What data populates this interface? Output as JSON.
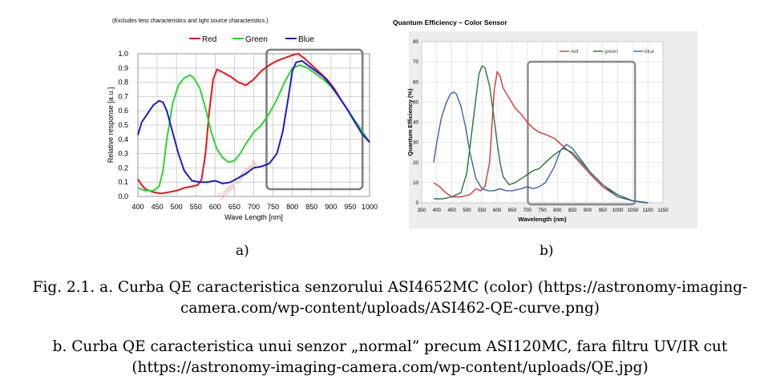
{
  "chart_data": [
    {
      "type": "line",
      "note_top": "(Excludes lens characteristics and light source characteristics.)",
      "xlabel": "Wave Length [nm]",
      "ylabel": "Relative response [a.u.]",
      "xlim": [
        400,
        1000
      ],
      "ylim": [
        0,
        1.0
      ],
      "xticks": [
        400,
        450,
        500,
        550,
        600,
        650,
        700,
        750,
        800,
        850,
        900,
        950,
        1000
      ],
      "yticks": [
        0.0,
        0.1,
        0.2,
        0.3,
        0.4,
        0.5,
        0.6,
        0.7,
        0.8,
        0.9,
        1.0
      ],
      "ytick_labels": [
        "0.0",
        "0.1",
        "0.2",
        "0.3",
        "0.4",
        "0.5",
        "0.6",
        "0.7",
        "0.8",
        "0.9",
        "1.0"
      ],
      "grid": true,
      "legend_position": "top",
      "watermark": "Sony Limited",
      "highlight_box_x": [
        700,
        990
      ],
      "series": [
        {
          "name": "Red",
          "color": "#e8141c",
          "x": [
            400,
            410,
            420,
            440,
            460,
            480,
            500,
            520,
            540,
            555,
            565,
            575,
            585,
            595,
            605,
            620,
            640,
            660,
            680,
            700,
            720,
            740,
            760,
            780,
            800,
            815,
            830,
            850,
            870,
            890,
            910,
            930,
            950,
            970,
            990,
            1000
          ],
          "y": [
            0.12,
            0.08,
            0.05,
            0.03,
            0.02,
            0.03,
            0.04,
            0.06,
            0.07,
            0.08,
            0.12,
            0.3,
            0.6,
            0.82,
            0.89,
            0.87,
            0.84,
            0.8,
            0.78,
            0.82,
            0.88,
            0.92,
            0.95,
            0.97,
            0.99,
            1.0,
            0.97,
            0.92,
            0.87,
            0.82,
            0.75,
            0.66,
            0.58,
            0.5,
            0.42,
            0.38
          ]
        },
        {
          "name": "Green",
          "color": "#2bd62b",
          "x": [
            400,
            420,
            440,
            455,
            465,
            475,
            490,
            505,
            520,
            535,
            545,
            560,
            575,
            590,
            605,
            620,
            635,
            650,
            665,
            680,
            700,
            720,
            740,
            760,
            780,
            800,
            820,
            840,
            860,
            880,
            900,
            920,
            940,
            960,
            980,
            1000
          ],
          "y": [
            0.06,
            0.04,
            0.04,
            0.07,
            0.18,
            0.4,
            0.65,
            0.78,
            0.83,
            0.85,
            0.83,
            0.76,
            0.62,
            0.45,
            0.33,
            0.27,
            0.24,
            0.25,
            0.3,
            0.37,
            0.45,
            0.5,
            0.58,
            0.68,
            0.8,
            0.9,
            0.92,
            0.9,
            0.86,
            0.82,
            0.77,
            0.7,
            0.62,
            0.54,
            0.46,
            0.38
          ]
        },
        {
          "name": "Blue",
          "color": "#1c1ccc",
          "x": [
            400,
            410,
            425,
            440,
            455,
            465,
            475,
            490,
            505,
            520,
            540,
            560,
            580,
            600,
            620,
            640,
            660,
            680,
            700,
            720,
            740,
            760,
            775,
            790,
            800,
            810,
            825,
            840,
            860,
            880,
            900,
            920,
            940,
            960,
            980,
            1000
          ],
          "y": [
            0.43,
            0.52,
            0.58,
            0.64,
            0.67,
            0.66,
            0.6,
            0.45,
            0.3,
            0.18,
            0.11,
            0.1,
            0.1,
            0.11,
            0.09,
            0.1,
            0.13,
            0.16,
            0.2,
            0.21,
            0.23,
            0.3,
            0.45,
            0.7,
            0.88,
            0.94,
            0.95,
            0.92,
            0.88,
            0.84,
            0.78,
            0.7,
            0.62,
            0.53,
            0.44,
            0.38
          ]
        }
      ]
    },
    {
      "type": "line",
      "title": "Quantum Efficiency – Color Sensor",
      "xlabel": "Wavelength (nm)",
      "ylabel": "Quantum Efficiency (%)",
      "xlim": [
        350,
        1150
      ],
      "ylim": [
        0,
        80
      ],
      "xticks": [
        350,
        400,
        450,
        500,
        550,
        600,
        650,
        700,
        750,
        800,
        850,
        900,
        950,
        1000,
        1050,
        1100,
        1150
      ],
      "yticks": [
        0,
        10,
        20,
        30,
        40,
        50,
        60,
        70,
        80
      ],
      "grid": true,
      "legend_position": "top-right",
      "highlight_box_x": [
        710,
        1100
      ],
      "series": [
        {
          "name": "red",
          "color": "#d2373c",
          "x": [
            390,
            410,
            430,
            450,
            480,
            510,
            530,
            545,
            560,
            575,
            590,
            600,
            610,
            620,
            640,
            660,
            680,
            700,
            720,
            740,
            760,
            790,
            820,
            850,
            880,
            910,
            950,
            1000,
            1050,
            1100
          ],
          "y": [
            10,
            8,
            5,
            3,
            3,
            4,
            7,
            6,
            8,
            20,
            55,
            65,
            63,
            57,
            52,
            47,
            44,
            40,
            37,
            35,
            34,
            32,
            28,
            24,
            19,
            14,
            8,
            3,
            1,
            0
          ]
        },
        {
          "name": "green",
          "color": "#227a37",
          "x": [
            390,
            420,
            450,
            480,
            500,
            520,
            540,
            550,
            560,
            575,
            590,
            600,
            610,
            620,
            640,
            660,
            680,
            700,
            720,
            740,
            760,
            790,
            820,
            850,
            880,
            910,
            950,
            1000,
            1050,
            1100
          ],
          "y": [
            2,
            2,
            3,
            5,
            15,
            40,
            64,
            68,
            67,
            58,
            42,
            30,
            20,
            13,
            9,
            10,
            12,
            14,
            16,
            17,
            20,
            24,
            27,
            25,
            20,
            15,
            9,
            4,
            1,
            0
          ]
        },
        {
          "name": "blue",
          "color": "#3a62a8",
          "x": [
            390,
            400,
            415,
            430,
            445,
            455,
            465,
            480,
            495,
            510,
            530,
            550,
            570,
            590,
            610,
            630,
            650,
            680,
            700,
            720,
            740,
            760,
            790,
            810,
            830,
            850,
            880,
            910,
            950,
            1000,
            1050,
            1100
          ],
          "y": [
            20,
            30,
            42,
            49,
            54,
            55,
            54,
            48,
            38,
            25,
            12,
            7,
            6,
            6,
            7,
            6,
            6,
            7,
            8,
            7,
            8,
            10,
            18,
            26,
            29,
            27,
            21,
            15,
            9,
            3,
            1,
            0
          ]
        }
      ]
    }
  ],
  "labels": {
    "a": "a)",
    "b": "b)"
  },
  "captions": {
    "line1": "Fig. 2.1. a. Curba QE caracteristica senzorului ASI4652MC (color) (https://astronomy-imaging-",
    "line2": "camera.com/wp-content/uploads/ASI462-QE-curve.png)",
    "line3": "b. Curba QE caracteristica unui senzor „normal” precum ASI120MC, fara filtru UV/IR cut",
    "line4": "(https://astronomy-imaging-camera.com/wp-content/uploads/QE.jpg)"
  }
}
